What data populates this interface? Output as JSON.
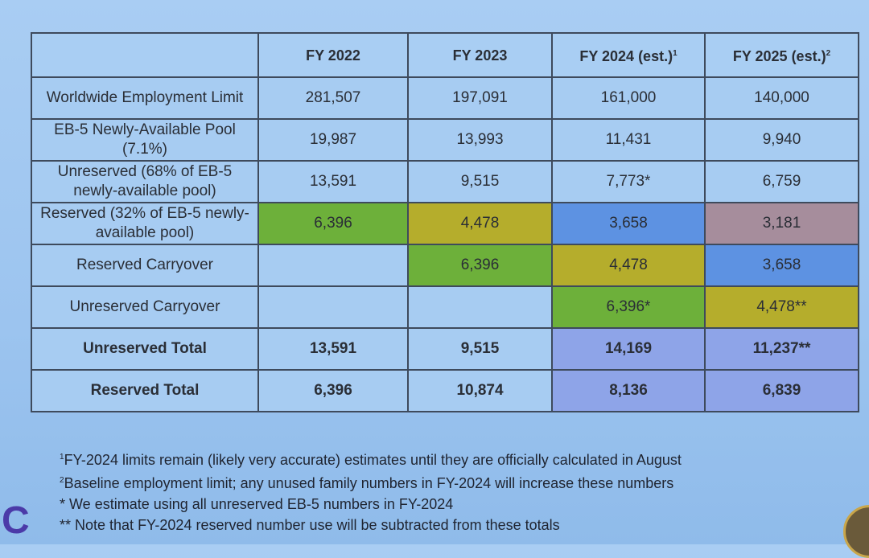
{
  "table": {
    "headers": [
      "",
      "FY 2022",
      "FY 2023",
      "FY 2024 (est.)",
      "FY 2025 (est.)"
    ],
    "header_sups": [
      "",
      "",
      "",
      "1",
      "2"
    ],
    "rows": [
      {
        "label": "Worldwide Employment Limit",
        "bold": false,
        "cells": [
          {
            "v": "281,507",
            "c": ""
          },
          {
            "v": "197,091",
            "c": ""
          },
          {
            "v": "161,000",
            "c": ""
          },
          {
            "v": "140,000",
            "c": ""
          }
        ]
      },
      {
        "label": "EB-5 Newly-Available Pool (7.1%)",
        "bold": false,
        "cells": [
          {
            "v": "19,987",
            "c": ""
          },
          {
            "v": "13,993",
            "c": ""
          },
          {
            "v": "11,431",
            "c": ""
          },
          {
            "v": "9,940",
            "c": ""
          }
        ]
      },
      {
        "label": "Unreserved (68% of EB-5 newly-available pool)",
        "bold": false,
        "cells": [
          {
            "v": "13,591",
            "c": ""
          },
          {
            "v": "9,515",
            "c": ""
          },
          {
            "v": "7,773*",
            "c": ""
          },
          {
            "v": "6,759",
            "c": ""
          }
        ]
      },
      {
        "label": "Reserved (32% of EB-5 newly-available pool)",
        "bold": false,
        "cells": [
          {
            "v": "6,396",
            "c": "#6db03a"
          },
          {
            "v": "4,478",
            "c": "#b5ad2c"
          },
          {
            "v": "3,658",
            "c": "#5d92e2"
          },
          {
            "v": "3,181",
            "c": "#a68d9c"
          }
        ]
      },
      {
        "label": "Reserved Carryover",
        "bold": false,
        "cells": [
          {
            "v": "",
            "c": ""
          },
          {
            "v": "6,396",
            "c": "#6db03a"
          },
          {
            "v": "4,478",
            "c": "#b5ad2c"
          },
          {
            "v": "3,658",
            "c": "#5d92e2"
          }
        ]
      },
      {
        "label": "Unreserved Carryover",
        "bold": false,
        "cells": [
          {
            "v": "",
            "c": ""
          },
          {
            "v": "",
            "c": ""
          },
          {
            "v": "6,396*",
            "c": "#6db03a"
          },
          {
            "v": "4,478**",
            "c": "#b5ad2c"
          }
        ]
      },
      {
        "label": "Unreserved Total",
        "bold": true,
        "cells": [
          {
            "v": "13,591",
            "c": ""
          },
          {
            "v": "9,515",
            "c": ""
          },
          {
            "v": "14,169",
            "c": "#8ea4e8"
          },
          {
            "v": "11,237**",
            "c": "#8ea4e8"
          }
        ]
      },
      {
        "label": "Reserved Total",
        "bold": true,
        "cells": [
          {
            "v": "6,396",
            "c": ""
          },
          {
            "v": "10,874",
            "c": ""
          },
          {
            "v": "8,136",
            "c": "#8ea4e8"
          },
          {
            "v": "6,839",
            "c": "#8ea4e8"
          }
        ]
      }
    ]
  },
  "footnotes": [
    {
      "mark": "1",
      "text": "FY-2024 limits remain (likely very accurate) estimates until they are officially calculated in August"
    },
    {
      "mark": "2",
      "text": "Baseline employment limit; any unused family numbers in FY-2024 will increase these numbers"
    },
    {
      "mark": "*",
      "text": " We estimate using all unreserved EB-5 numbers in FY-2024"
    },
    {
      "mark": "**",
      "text": " Note that FY-2024 reserved number use will be subtracted from these totals"
    }
  ],
  "logo": "C"
}
